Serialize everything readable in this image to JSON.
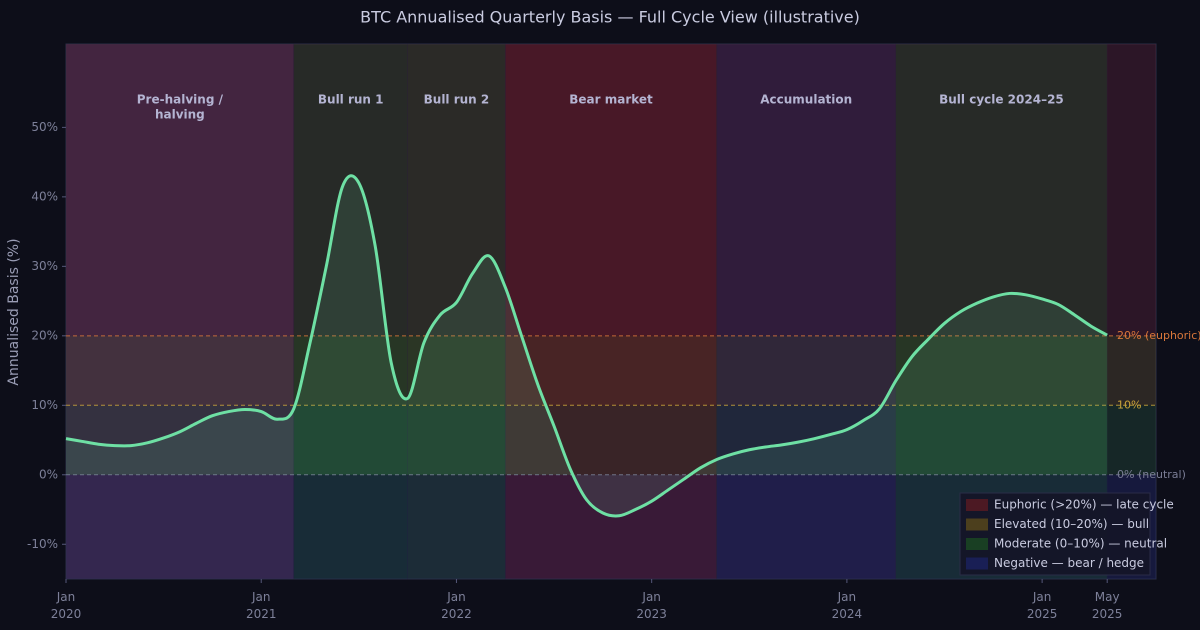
{
  "chart_data": {
    "type": "line",
    "title": "BTC Annualised Quarterly Basis — Full Cycle View (illustrative)",
    "y_label": "Annualised Basis (%)",
    "x": [
      "2020-01",
      "2020-02",
      "2020-03",
      "2020-04",
      "2020-05",
      "2020-06",
      "2020-07",
      "2020-08",
      "2020-09",
      "2020-10",
      "2020-11",
      "2020-12",
      "2021-01",
      "2021-02",
      "2021-03",
      "2021-04",
      "2021-05",
      "2021-06",
      "2021-07",
      "2021-08",
      "2021-09",
      "2021-10",
      "2021-11",
      "2021-12",
      "2022-01",
      "2022-02",
      "2022-03",
      "2022-04",
      "2022-05",
      "2022-06",
      "2022-07",
      "2022-08",
      "2022-09",
      "2022-10",
      "2022-11",
      "2022-12",
      "2023-01",
      "2023-02",
      "2023-03",
      "2023-04",
      "2023-05",
      "2023-06",
      "2023-07",
      "2023-08",
      "2023-09",
      "2023-10",
      "2023-11",
      "2023-12",
      "2024-01",
      "2024-02",
      "2024-03",
      "2024-04",
      "2024-05",
      "2024-06",
      "2024-07",
      "2024-08",
      "2024-09",
      "2024-10",
      "2024-11",
      "2024-12",
      "2025-01",
      "2025-02",
      "2025-03",
      "2025-04",
      "2025-05"
    ],
    "values": [
      5.2,
      4.8,
      4.4,
      4.2,
      4.2,
      4.6,
      5.3,
      6.2,
      7.4,
      8.5,
      9.1,
      9.4,
      9.1,
      8,
      9.5,
      19,
      30,
      41.5,
      42,
      33,
      16,
      11,
      19,
      23,
      24.8,
      29,
      31.5,
      27,
      20,
      13,
      7,
      0.8,
      -3.6,
      -5.5,
      -5.9,
      -5,
      -3.8,
      -2.2,
      -0.6,
      1,
      2.2,
      3,
      3.6,
      4,
      4.3,
      4.7,
      5.2,
      5.8,
      6.5,
      7.8,
      9.5,
      13.5,
      17,
      19.5,
      21.8,
      23.5,
      24.7,
      25.6,
      26.1,
      25.9,
      25.3,
      24.5,
      23,
      21.4,
      20.1
    ],
    "color": "#6ee0a4",
    "xlim": [
      "2020-01",
      "2025-08"
    ],
    "xticks": [
      {
        "value": "2020-01",
        "label": "Jan 2020"
      },
      {
        "value": "2021-01",
        "label": "Jan 2021"
      },
      {
        "value": "2022-01",
        "label": "Jan 2022"
      },
      {
        "value": "2023-01",
        "label": "Jan 2023"
      },
      {
        "value": "2024-01",
        "label": "Jan 2024"
      },
      {
        "value": "2025-01",
        "label": "Jan 2025"
      },
      {
        "value": "2025-05",
        "label": "May 2025"
      }
    ],
    "ylim": [
      -15,
      62
    ],
    "yticks": [
      {
        "value": -10,
        "label": "-10%"
      },
      {
        "value": 0,
        "label": "0%"
      },
      {
        "value": 10,
        "label": "10%"
      },
      {
        "value": 20,
        "label": "20%"
      },
      {
        "value": 30,
        "label": "30%"
      },
      {
        "value": 40,
        "label": "40%"
      },
      {
        "value": 50,
        "label": "50%"
      }
    ],
    "phases": [
      {
        "start": "2020-01",
        "end": "2021-03",
        "label": [
          "Pre-halving /",
          "halving"
        ],
        "color": "#7a4a7a"
      },
      {
        "start": "2021-03",
        "end": "2021-10",
        "label": [
          "Bull run 1"
        ],
        "color": "#1e5a2a"
      },
      {
        "start": "2021-10",
        "end": "2022-04",
        "label": [
          "Bull run 2"
        ],
        "color": "#2a5a2a"
      },
      {
        "start": "2022-04",
        "end": "2023-05",
        "label": [
          "Bear market"
        ],
        "color": "#8a1e2a"
      },
      {
        "start": "2023-05",
        "end": "2024-04",
        "label": [
          "Accumulation"
        ],
        "color": "#3a2a6a"
      },
      {
        "start": "2024-04",
        "end": "2025-05",
        "label": [
          "Bull cycle 2024–25"
        ],
        "color": "#1e5a2a"
      }
    ],
    "reference_lines": [
      {
        "value": 20,
        "label": "20% (euphoric)",
        "color": "#d9773a"
      },
      {
        "value": 10,
        "label": "10%",
        "color": "#c9a33a"
      },
      {
        "value": 0,
        "label": "0% (neutral)",
        "color": "#7a7d95"
      }
    ],
    "zones": [
      {
        "name": "Euphoric (>20%) — late cycle",
        "from": 20,
        "color": "#5a1a22"
      },
      {
        "name": "Elevated (10–20%) — bull",
        "from": 10,
        "to": 20,
        "color": "#5a4a1a"
      },
      {
        "name": "Moderate (0–10%) — neutral",
        "from": 0,
        "to": 10,
        "color": "#1a4a22"
      },
      {
        "name": "Negative — bear / hedge",
        "to": 0,
        "color": "#1a2260"
      }
    ],
    "legend": "lower right"
  }
}
